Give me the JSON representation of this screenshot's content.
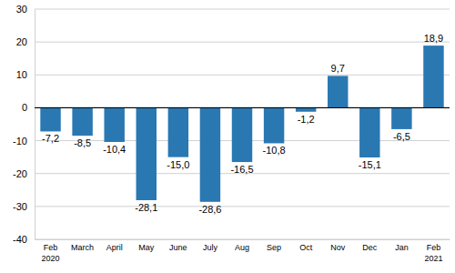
{
  "chart_data": {
    "type": "bar",
    "categories": [
      "Feb\n2020",
      "March",
      "April",
      "May",
      "June",
      "July",
      "Aug",
      "Sep",
      "Oct",
      "Nov",
      "Dec",
      "Jan",
      "Feb\n2021"
    ],
    "values": [
      -7.2,
      -8.5,
      -10.4,
      -28.1,
      -15.0,
      -28.6,
      -16.5,
      -10.8,
      -1.2,
      9.7,
      -15.1,
      -6.5,
      18.9
    ],
    "value_labels": [
      "-7,2",
      "-8,5",
      "-10,4",
      "-28,1",
      "-15,0",
      "-28,6",
      "-16,5",
      "-10,8",
      "-1,2",
      "9,7",
      "-15,1",
      "-6,5",
      "18,9"
    ],
    "data_labels": true,
    "color": "#2a78b2",
    "ylim": [
      -40,
      30
    ],
    "yticks": [
      -40,
      -30,
      -20,
      -10,
      0,
      10,
      20,
      30
    ],
    "grid": true
  }
}
